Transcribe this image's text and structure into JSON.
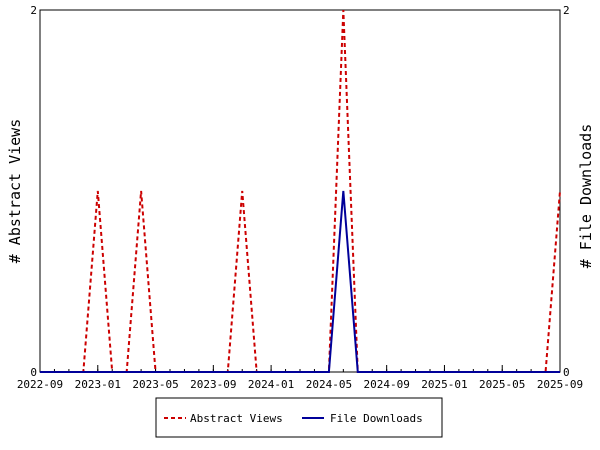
{
  "chart_data": {
    "type": "line",
    "title": "",
    "ylabel_left": "# Abstract Views",
    "ylabel_right": "# File Downloads",
    "ylim": [
      0,
      2
    ],
    "yticks": [
      "0",
      "2"
    ],
    "x_start": "2022-09",
    "x_end": "2025-09",
    "xticks": [
      "2022-09",
      "2023-01",
      "2023-05",
      "2023-09",
      "2024-01",
      "2024-05",
      "2024-09",
      "2025-01",
      "2025-05",
      "2025-09"
    ],
    "x": [
      "2022-09",
      "2022-10",
      "2022-11",
      "2022-12",
      "2023-01",
      "2023-02",
      "2023-03",
      "2023-04",
      "2023-05",
      "2023-06",
      "2023-07",
      "2023-08",
      "2023-09",
      "2023-10",
      "2023-11",
      "2023-12",
      "2024-01",
      "2024-02",
      "2024-03",
      "2024-04",
      "2024-05",
      "2024-06",
      "2024-07",
      "2024-08",
      "2024-09",
      "2024-10",
      "2024-11",
      "2024-12",
      "2025-01",
      "2025-02",
      "2025-03",
      "2025-04",
      "2025-05",
      "2025-06",
      "2025-07",
      "2025-08",
      "2025-09"
    ],
    "series": [
      {
        "name": "Abstract Views",
        "color": "#cc0000",
        "dash": "dashed",
        "values": [
          0,
          0,
          0,
          0,
          1,
          0,
          0,
          1,
          0,
          0,
          0,
          0,
          0,
          0,
          1,
          0,
          0,
          0,
          0,
          0,
          0,
          2,
          0,
          0,
          0,
          0,
          0,
          0,
          0,
          0,
          0,
          0,
          0,
          0,
          0,
          0,
          1
        ]
      },
      {
        "name": "File Downloads",
        "color": "#000099",
        "dash": "solid",
        "values": [
          0,
          0,
          0,
          0,
          0,
          0,
          0,
          0,
          0,
          0,
          0,
          0,
          0,
          0,
          0,
          0,
          0,
          0,
          0,
          0,
          0,
          1,
          0,
          0,
          0,
          0,
          0,
          0,
          0,
          0,
          0,
          0,
          0,
          0,
          0,
          0,
          0
        ]
      }
    ],
    "legend": {
      "position": "bottom",
      "entries": [
        "Abstract Views",
        "File Downloads"
      ]
    },
    "grid": false
  }
}
